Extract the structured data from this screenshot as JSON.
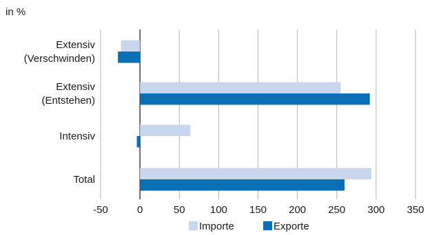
{
  "chart_data": {
    "type": "bar",
    "orientation": "horizontal",
    "unit_label": "in %",
    "categories": [
      [
        "Extensiv",
        "(Verschwinden)"
      ],
      [
        "Extensiv",
        "(Entstehen)"
      ],
      [
        "Intensiv"
      ],
      [
        "Total"
      ]
    ],
    "series": [
      {
        "name": "Importe",
        "color": "#c9d7ee",
        "values": [
          -24,
          255,
          64,
          294
        ]
      },
      {
        "name": "Exporte",
        "color": "#0a6fb5",
        "values": [
          -28,
          292,
          -4,
          260
        ]
      }
    ],
    "xlim": [
      -50,
      350
    ],
    "xticks": [
      "-50",
      "0",
      "50",
      "100",
      "150",
      "200",
      "250",
      "300",
      "350"
    ],
    "grid": true,
    "legend_position": "bottom"
  }
}
